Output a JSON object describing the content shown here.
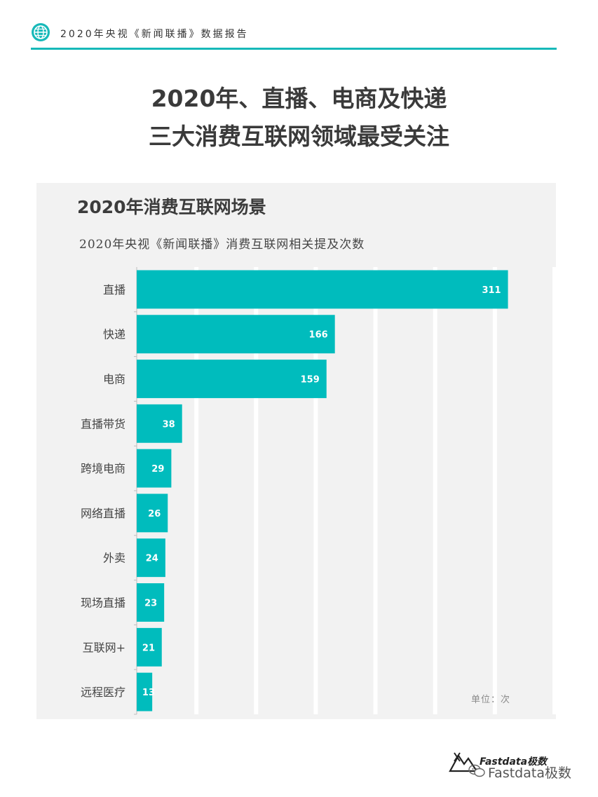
{
  "header": {
    "text": "2020年央视《新闻联播》数据报告",
    "accent_color": "#17b9b9",
    "icon": "globe-icon"
  },
  "headline": {
    "line1": "2020年、直播、电商及快递",
    "line2": "三大消费互联网领域最受关注"
  },
  "chart": {
    "title": "2020年消费互联网场景",
    "subtitle": "2020年央视《新闻联播》消费互联网相关提及次数",
    "unit": "单位：次"
  },
  "chart_data": {
    "type": "bar",
    "orientation": "horizontal",
    "title": "2020年消费互联网场景",
    "subtitle": "2020年央视《新闻联播》消费互联网相关提及次数",
    "categories": [
      "直播",
      "快递",
      "电商",
      "直播带货",
      "跨境电商",
      "网络直播",
      "外卖",
      "现场直播",
      "互联网+",
      "远程医疗"
    ],
    "values": [
      311,
      166,
      159,
      38,
      29,
      26,
      24,
      23,
      21,
      13
    ],
    "xlim": [
      0,
      350
    ],
    "grid": true,
    "bar_color": "#00bcbd",
    "unit": "单位：次"
  },
  "brand": {
    "name": "Fastdata极数",
    "watermark": "Fastdata极数"
  }
}
